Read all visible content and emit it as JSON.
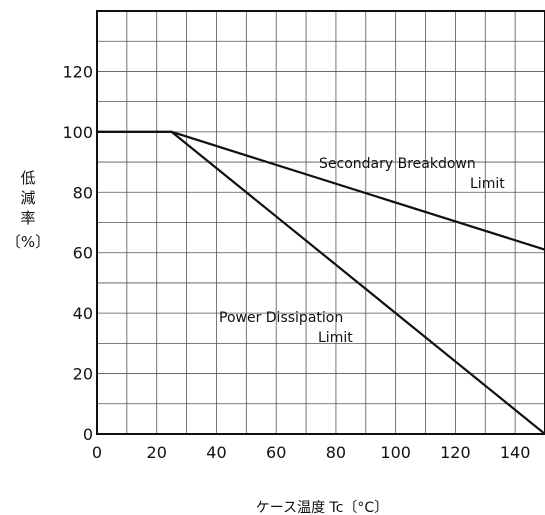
{
  "chart_data": {
    "type": "line",
    "title": "",
    "xlabel": "ケース温度 Tc〔°C〕",
    "ylabel": [
      "低",
      "減",
      "率",
      "〔%〕"
    ],
    "xlim": [
      0,
      150
    ],
    "ylim": [
      0,
      140
    ],
    "x_ticks": [
      "0",
      "20",
      "40",
      "60",
      "80",
      "100",
      "120",
      "140"
    ],
    "y_ticks": [
      "0",
      "20",
      "40",
      "60",
      "80",
      "100",
      "120"
    ],
    "grid": true,
    "series": [
      {
        "name": "Secondary Breakdown Limit",
        "x": [
          0,
          25,
          150
        ],
        "y": [
          100,
          100,
          61
        ]
      },
      {
        "name": "Power Dissipation Limit",
        "x": [
          0,
          25,
          150
        ],
        "y": [
          100,
          100,
          0
        ]
      }
    ],
    "annotations": [
      {
        "lines": [
          "Secondary Breakdown",
          "Limit"
        ]
      },
      {
        "lines": [
          "Power Dissipation",
          "Limit"
        ]
      }
    ]
  }
}
